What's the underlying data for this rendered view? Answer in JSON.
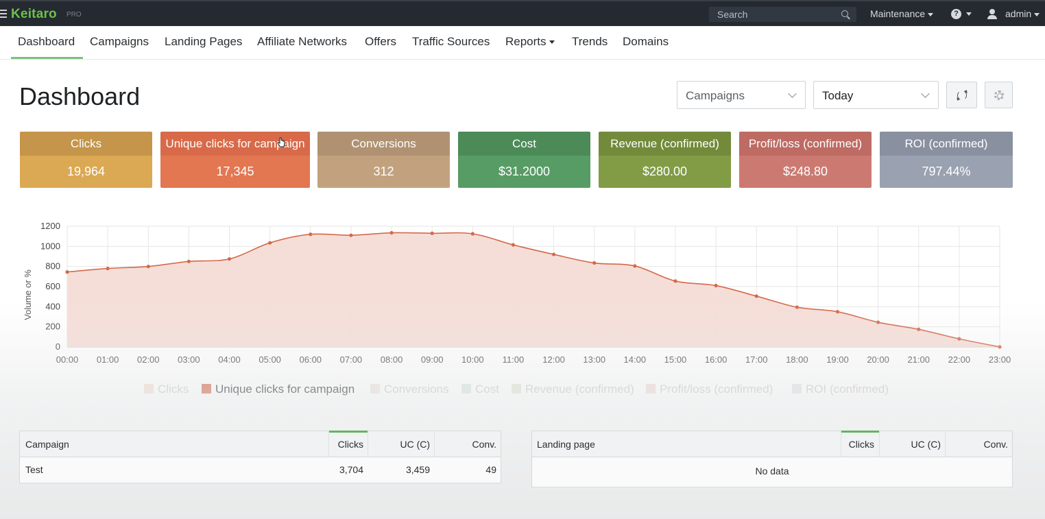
{
  "topbar": {
    "logo": "Keitaro",
    "logo_badge": "PRO",
    "search_placeholder": "Search",
    "maintenance_label": "Maintenance",
    "help_glyph": "?",
    "user_label": "admin"
  },
  "nav": {
    "items": [
      {
        "label": "Dashboard"
      },
      {
        "label": "Campaigns"
      },
      {
        "label": "Landing Pages"
      },
      {
        "label": "Affiliate Networks"
      },
      {
        "label": "Offers"
      },
      {
        "label": "Traffic Sources"
      },
      {
        "label": "Reports"
      },
      {
        "label": "Trends"
      },
      {
        "label": "Domains"
      }
    ],
    "active": "Dashboard"
  },
  "header": {
    "title": "Dashboard",
    "entity_select": "Campaigns",
    "period_select": "Today"
  },
  "kpis": [
    {
      "label": "Clicks",
      "value": "19,964",
      "header_color": "#c4954a",
      "body_color": "#dba853"
    },
    {
      "label": "Unique clicks for campaign",
      "value": "17,345",
      "header_color": "#d86a49",
      "body_color": "#e27752"
    },
    {
      "label": "Conversions",
      "value": "312",
      "header_color": "#b09272",
      "body_color": "#c2a27e"
    },
    {
      "label": "Cost",
      "value": "$31.2000",
      "header_color": "#4c8b58",
      "body_color": "#589c65"
    },
    {
      "label": "Revenue (confirmed)",
      "value": "$280.00",
      "header_color": "#728a3a",
      "body_color": "#819c45"
    },
    {
      "label": "Profit/loss (confirmed)",
      "value": "$248.80",
      "header_color": "#bd6b63",
      "body_color": "#cc7a71"
    },
    {
      "label": "ROI (confirmed)",
      "value": "797.44%",
      "header_color": "#8990a0",
      "body_color": "#9aa1b0"
    }
  ],
  "chart_data": {
    "type": "area",
    "title": "",
    "xlabel": "",
    "ylabel": "Volume or %",
    "ylim": [
      0,
      1200
    ],
    "yticks": [
      0,
      200,
      400,
      600,
      800,
      1000,
      1200
    ],
    "categories": [
      "00:00",
      "01:00",
      "02:00",
      "03:00",
      "04:00",
      "05:00",
      "06:00",
      "07:00",
      "08:00",
      "09:00",
      "10:00",
      "11:00",
      "12:00",
      "13:00",
      "14:00",
      "15:00",
      "16:00",
      "17:00",
      "18:00",
      "19:00",
      "20:00",
      "21:00",
      "22:00",
      "23:00"
    ],
    "series": [
      {
        "name": "Unique clicks for campaign",
        "color": "#d4694a",
        "fill": "#f6dcd6",
        "values": [
          745,
          780,
          800,
          850,
          875,
          1035,
          1120,
          1110,
          1135,
          1130,
          1125,
          1015,
          920,
          835,
          805,
          655,
          610,
          505,
          395,
          350,
          245,
          175,
          80,
          0
        ]
      }
    ],
    "grid": true,
    "legend": {
      "placement": "bottom",
      "items": [
        {
          "name": "Clicks",
          "color": "#f3e2d3",
          "active": false
        },
        {
          "name": "Unique clicks for campaign",
          "color": "#d4694a",
          "active": true
        },
        {
          "name": "Conversions",
          "color": "#ece6df",
          "active": false
        },
        {
          "name": "Cost",
          "color": "#dbe9df",
          "active": false
        },
        {
          "name": "Revenue (confirmed)",
          "color": "#e3e7d8",
          "active": false
        },
        {
          "name": "Profit/loss (confirmed)",
          "color": "#f2dcda",
          "active": false
        },
        {
          "name": "ROI (confirmed)",
          "color": "#e3e4e7",
          "active": false
        }
      ]
    }
  },
  "campaign_table": {
    "columns": [
      "Campaign",
      "Clicks",
      "UC (C)",
      "Conv."
    ],
    "rows": [
      {
        "campaign": "Test",
        "clicks": "3,704",
        "uc": "3,459",
        "conv": "49"
      }
    ]
  },
  "landing_table": {
    "columns": [
      "Landing page",
      "Clicks",
      "UC (C)",
      "Conv."
    ],
    "empty_text": "No data"
  }
}
